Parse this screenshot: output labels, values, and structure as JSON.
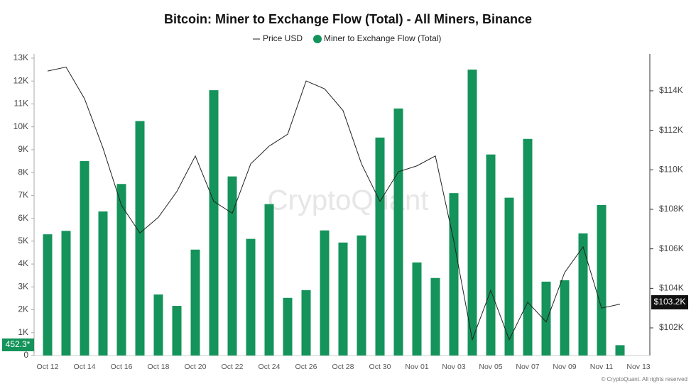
{
  "chart_data": {
    "type": "bar-line",
    "title": "Bitcoin: Miner to Exchange Flow (Total) - All Miners, Binance",
    "categories": [
      "Oct 12",
      null,
      "Oct 14",
      null,
      "Oct 16",
      null,
      "Oct 18",
      null,
      "Oct 20",
      null,
      "Oct 22",
      null,
      "Oct 24",
      null,
      "Oct 26",
      null,
      "Oct 28",
      null,
      "Oct 30",
      null,
      "Nov 01",
      null,
      "Nov 03",
      null,
      "Nov 05",
      null,
      "Nov 07",
      null,
      "Nov 09",
      null,
      "Nov 11",
      null,
      "Nov 13"
    ],
    "series": [
      {
        "name": "Price USD",
        "type": "line",
        "axis": "y2",
        "color": "#222222",
        "values": [
          115000,
          115200,
          113600,
          111100,
          108200,
          106800,
          107600,
          108900,
          110700,
          108400,
          107800,
          110300,
          111200,
          111800,
          114500,
          114100,
          113000,
          110300,
          108400,
          109900,
          110200,
          110700,
          106400,
          101400,
          103900,
          101400,
          103300,
          102300,
          104800,
          106100,
          103000,
          103200,
          null
        ]
      },
      {
        "name": "Miner to Exchange Flow (Total)",
        "type": "bar",
        "color": "#14935a",
        "values": [
          5300,
          5450,
          8500,
          6300,
          7500,
          10250,
          2670,
          2170,
          4630,
          11600,
          7830,
          5100,
          6620,
          2520,
          2860,
          5470,
          4940,
          5250,
          9530,
          10800,
          4070,
          3390,
          7100,
          12500,
          8790,
          6900,
          9470,
          3230,
          3290,
          5340,
          6580,
          452.3,
          null
        ]
      }
    ],
    "ylim": [
      0,
      13000
    ],
    "yticks": [
      0,
      {
        "value": 1000,
        "label": "1K"
      },
      {
        "value": 2000,
        "label": "2K"
      },
      {
        "value": 3000,
        "label": "3K"
      },
      {
        "value": 4000,
        "label": "4K"
      },
      {
        "value": 5000,
        "label": "5K"
      },
      {
        "value": 6000,
        "label": "6K"
      },
      {
        "value": 7000,
        "label": "7K"
      },
      {
        "value": 8000,
        "label": "8K"
      },
      {
        "value": 9000,
        "label": "9K"
      },
      {
        "value": 10000,
        "label": "10K"
      },
      {
        "value": 11000,
        "label": "11K"
      },
      {
        "value": 12000,
        "label": "12K"
      },
      {
        "value": 13000,
        "label": "13K"
      }
    ],
    "y2lim": [
      100600,
      115650
    ],
    "y2ticks": [
      {
        "value": 102000,
        "label": "$102K"
      },
      {
        "value": 104000,
        "label": "$104K"
      },
      {
        "value": 106000,
        "label": "$106K"
      },
      {
        "value": 108000,
        "label": "$108K"
      },
      {
        "value": 110000,
        "label": "$110K"
      },
      {
        "value": 112000,
        "label": "$112K"
      },
      {
        "value": 114000,
        "label": "$114K"
      }
    ],
    "last_value_labels": {
      "y": "452.3*",
      "y2": "$103.2K"
    },
    "watermark": "CryptoQuant",
    "footer": "© CryptoQuant. All rights reserved"
  }
}
